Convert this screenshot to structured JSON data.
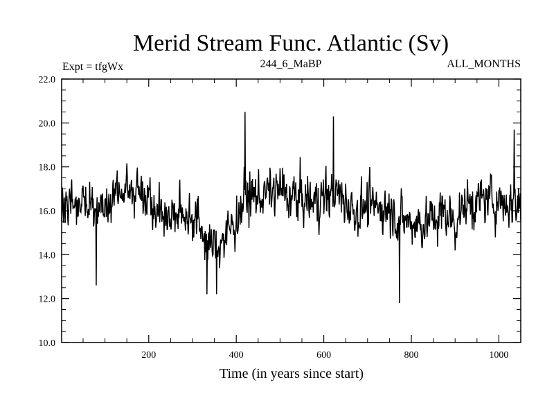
{
  "chart_data": {
    "type": "line",
    "title": "Merid Stream Func. Atlantic (Sv)",
    "subtitle_left": "Expt = tfgWx",
    "subtitle_center": "244_6_MaBP",
    "subtitle_right": "ALL_MONTHS",
    "xlabel": "Time (in years since start)",
    "ylabel": "",
    "xlim": [
      1,
      1050
    ],
    "ylim": [
      10.0,
      22.0
    ],
    "x_ticks": [
      200,
      400,
      600,
      800,
      1000
    ],
    "x_tick_labels": [
      "200",
      "400",
      "600",
      "800",
      "1000"
    ],
    "y_ticks": [
      10,
      12,
      14,
      16,
      18,
      20,
      22
    ],
    "y_tick_labels": [
      "10.0",
      "12.0",
      "14.0",
      "16.0",
      "18.0",
      "20.0",
      "22.0"
    ],
    "grid": false,
    "series": [
      {
        "color": "#000000",
        "x": [
          1,
          25,
          50,
          75,
          100,
          125,
          150,
          175,
          200,
          225,
          250,
          275,
          300,
          325,
          340,
          355,
          375,
          400,
          420,
          450,
          475,
          500,
          525,
          550,
          575,
          600,
          625,
          650,
          675,
          700,
          725,
          750,
          775,
          800,
          825,
          850,
          875,
          900,
          925,
          950,
          975,
          1000,
          1025,
          1050
        ],
        "y": [
          16.0,
          16.2,
          16.3,
          16.1,
          16.4,
          16.9,
          17.0,
          16.9,
          16.8,
          16.0,
          15.7,
          15.9,
          15.8,
          15.0,
          14.3,
          14.5,
          14.8,
          15.6,
          16.6,
          16.7,
          16.8,
          16.9,
          16.6,
          16.5,
          16.4,
          16.6,
          16.8,
          16.4,
          16.0,
          16.2,
          16.1,
          16.2,
          15.6,
          15.5,
          15.4,
          15.6,
          15.9,
          15.5,
          16.3,
          16.4,
          16.5,
          16.5,
          16.3,
          16.4
        ],
        "annotated_extremes": [
          {
            "x": 80,
            "y": 12.6
          },
          {
            "x": 333,
            "y": 12.2
          },
          {
            "x": 355,
            "y": 12.2
          },
          {
            "x": 420,
            "y": 20.5
          },
          {
            "x": 622,
            "y": 20.3
          },
          {
            "x": 773,
            "y": 11.8
          },
          {
            "x": 1035,
            "y": 19.7
          }
        ]
      }
    ]
  }
}
